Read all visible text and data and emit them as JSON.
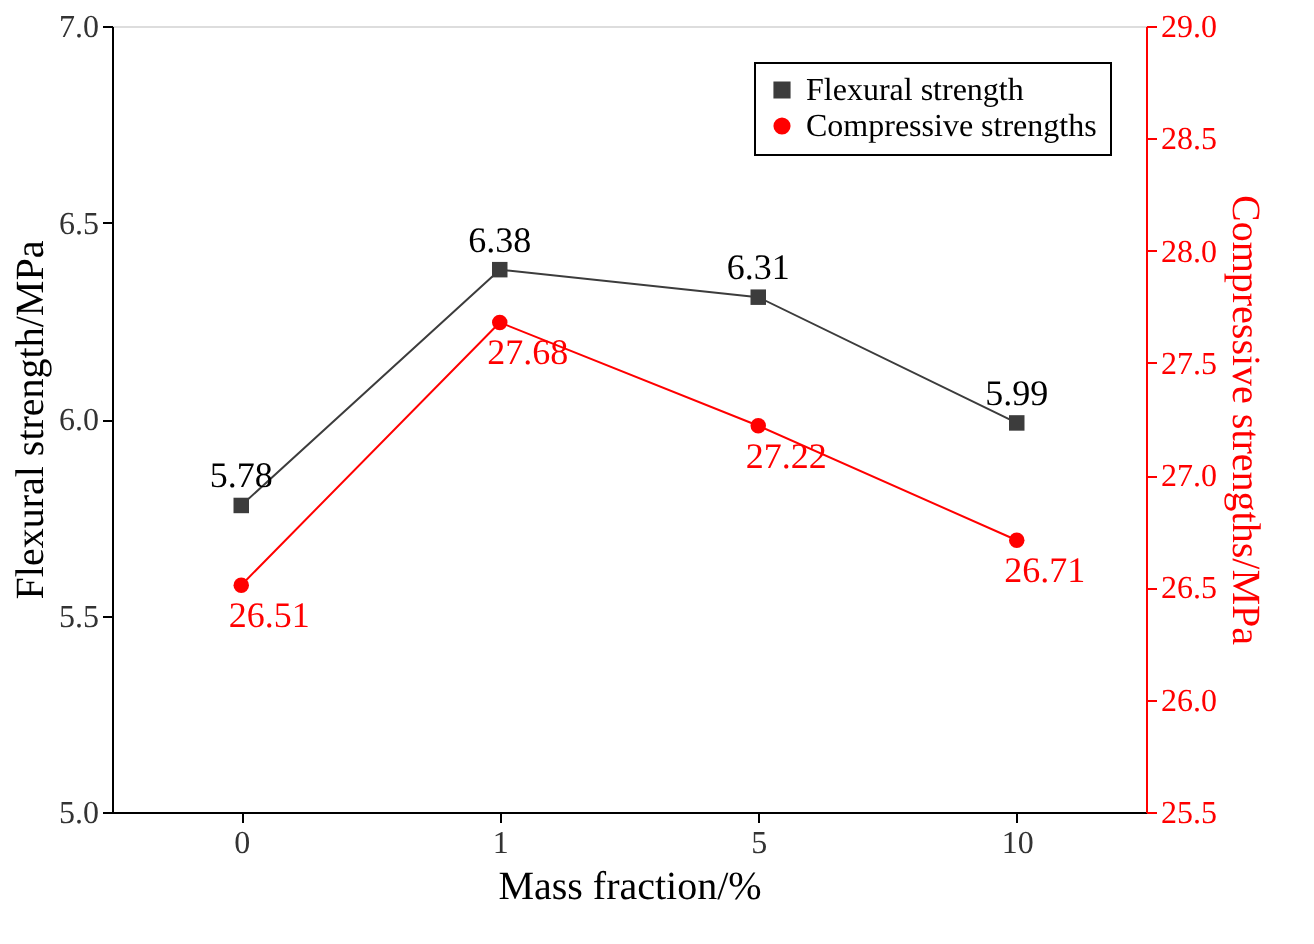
{
  "chart_data": {
    "type": "line",
    "xlabel": "Mass fraction/%",
    "ylabel": "Flexural strength/MPa",
    "y2label": "Compressive strengths/MPa",
    "categories": [
      "0",
      "1",
      "5",
      "10"
    ],
    "series": [
      {
        "name": "Flexural strength",
        "color": "#3c3c3c",
        "marker": "square",
        "values": [
          5.78,
          6.38,
          6.31,
          5.99
        ]
      },
      {
        "name": "Compressive strengths",
        "color": "#ff0000",
        "marker": "circle",
        "axis": "y2",
        "values": [
          26.51,
          27.68,
          27.22,
          26.71
        ]
      }
    ],
    "ylim": [
      5.0,
      7.0
    ],
    "yticks": [
      {
        "value": 5,
        "label": "5.0"
      },
      5.5,
      {
        "value": 6,
        "label": "6.0"
      },
      6.5,
      {
        "value": 7,
        "label": "7.0"
      }
    ],
    "y2lim": [
      25.5,
      29.0
    ],
    "y2ticks": [
      25.5,
      {
        "value": 26,
        "label": "26.0"
      },
      26.5,
      {
        "value": 27,
        "label": "27.0"
      },
      27.5,
      {
        "value": 28,
        "label": "28.0"
      },
      28.5,
      {
        "value": 29,
        "label": "29.0"
      }
    ],
    "data_labels": true,
    "legend": "top right",
    "grid": false,
    "line_style": "solid"
  }
}
